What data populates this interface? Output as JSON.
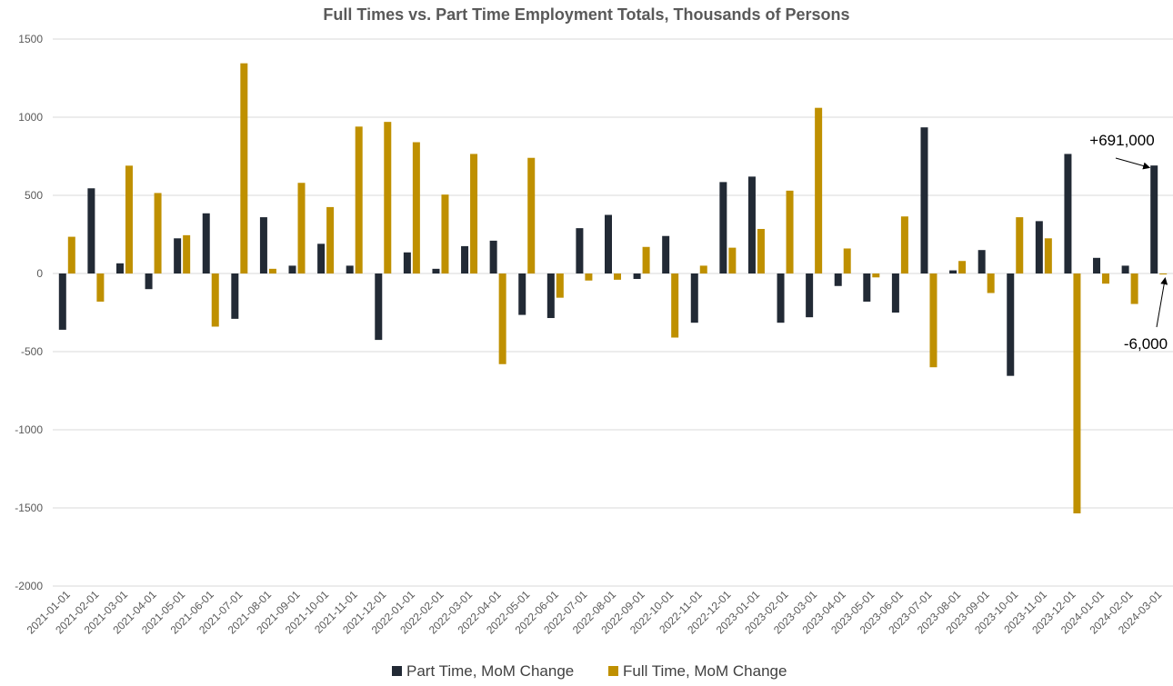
{
  "chart_data": {
    "type": "bar",
    "title": "Full Times vs. Part Time Employment Totals, Thousands of Persons",
    "xlabel": "",
    "ylabel": "",
    "ylim": [
      -2000,
      1500
    ],
    "yticks": [
      1500,
      1000,
      500,
      0,
      -500,
      -1000,
      -1500,
      -2000
    ],
    "grid": true,
    "legend_position": "bottom",
    "categories": [
      "2021-01-01",
      "2021-02-01",
      "2021-03-01",
      "2021-04-01",
      "2021-05-01",
      "2021-06-01",
      "2021-07-01",
      "2021-08-01",
      "2021-09-01",
      "2021-10-01",
      "2021-11-01",
      "2021-12-01",
      "2022-01-01",
      "2022-02-01",
      "2022-03-01",
      "2022-04-01",
      "2022-05-01",
      "2022-06-01",
      "2022-07-01",
      "2022-08-01",
      "2022-09-01",
      "2022-10-01",
      "2022-11-01",
      "2022-12-01",
      "2023-01-01",
      "2023-02-01",
      "2023-03-01",
      "2023-04-01",
      "2023-05-01",
      "2023-06-01",
      "2023-07-01",
      "2023-08-01",
      "2023-09-01",
      "2023-10-01",
      "2023-11-01",
      "2023-12-01",
      "2024-01-01",
      "2024-02-01",
      "2024-03-01"
    ],
    "series": [
      {
        "name": "Part Time, MoM Change",
        "color": "#222a35",
        "values": [
          -360,
          545,
          65,
          -100,
          225,
          385,
          -290,
          360,
          50,
          190,
          50,
          -425,
          135,
          30,
          175,
          210,
          -265,
          -285,
          290,
          375,
          -35,
          240,
          -315,
          585,
          620,
          -315,
          -280,
          -80,
          -180,
          -250,
          935,
          20,
          150,
          -655,
          335,
          765,
          100,
          50,
          691
        ]
      },
      {
        "name": "Full Time, MoM Change",
        "color": "#bf9000",
        "values": [
          235,
          -180,
          690,
          515,
          245,
          -340,
          1345,
          30,
          580,
          425,
          940,
          970,
          840,
          505,
          765,
          -580,
          740,
          -155,
          -45,
          -40,
          170,
          -410,
          50,
          165,
          285,
          530,
          1060,
          160,
          -25,
          365,
          -600,
          80,
          -125,
          360,
          225,
          -1535,
          -65,
          -195,
          -6
        ]
      }
    ],
    "annotations": [
      {
        "text": "+691,000",
        "series": 0,
        "category": "2024-03-01"
      },
      {
        "text": "-6,000",
        "series": 1,
        "category": "2024-03-01"
      }
    ]
  }
}
